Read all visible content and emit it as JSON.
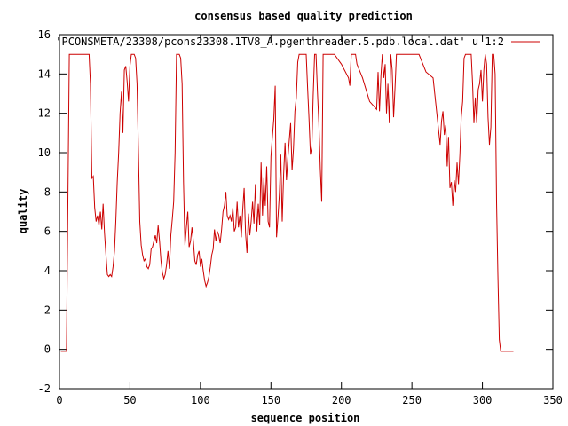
{
  "chart_data": {
    "type": "line",
    "title": "consensus based quality prediction",
    "xlabel": "sequence position",
    "ylabel": "quality",
    "xlim": [
      0,
      350
    ],
    "ylim": [
      -2,
      16
    ],
    "xticks": [
      0,
      50,
      100,
      150,
      200,
      250,
      300,
      350
    ],
    "xtick_labels": [
      "0",
      "50",
      "100",
      "150",
      "200",
      "250",
      "300",
      "350"
    ],
    "yticks": [
      -2,
      0,
      2,
      4,
      6,
      8,
      10,
      12,
      14,
      16
    ],
    "ytick_labels": [
      "-2",
      "0",
      "2",
      "4",
      "6",
      "8",
      "10",
      "12",
      "14",
      "16"
    ],
    "grid": false,
    "legend_position": "top-right",
    "series": [
      {
        "name": "'PCONSMETA/23308/pcons23308.1TV8_A.pgenthreader.5.pdb.local.dat' u 1:2",
        "color": "#cc0000",
        "x": [
          1,
          5,
          6,
          7,
          8,
          10,
          14,
          18,
          21,
          22,
          23,
          24,
          25,
          26,
          27,
          28,
          29,
          30,
          31,
          32,
          33,
          34,
          35,
          36,
          37,
          38,
          39,
          40,
          41,
          42,
          43,
          44,
          45,
          46,
          47,
          48,
          49,
          50,
          51,
          52,
          53,
          54,
          55,
          56,
          57,
          58,
          59,
          60,
          61,
          62,
          63,
          64,
          65,
          66,
          67,
          68,
          69,
          70,
          71,
          72,
          73,
          74,
          75,
          76,
          77,
          78,
          79,
          80,
          81,
          82,
          83,
          84,
          85,
          86,
          87,
          88,
          89,
          90,
          91,
          92,
          93,
          94,
          95,
          96,
          97,
          98,
          99,
          100,
          101,
          102,
          103,
          104,
          105,
          106,
          107,
          108,
          109,
          110,
          111,
          112,
          113,
          114,
          115,
          116,
          117,
          118,
          119,
          120,
          121,
          122,
          123,
          124,
          125,
          126,
          127,
          128,
          129,
          130,
          131,
          132,
          133,
          134,
          135,
          136,
          137,
          138,
          139,
          140,
          141,
          142,
          143,
          144,
          145,
          146,
          147,
          148,
          149,
          150,
          151,
          152,
          153,
          154,
          155,
          156,
          157,
          158,
          159,
          160,
          161,
          162,
          163,
          164,
          165,
          166,
          167,
          168,
          169,
          170,
          171,
          172,
          173,
          174,
          175,
          176,
          177,
          178,
          179,
          180,
          181,
          182,
          183,
          184,
          185,
          186,
          187,
          188,
          189,
          190,
          195,
          200,
          205,
          206,
          207,
          208,
          209,
          210,
          211,
          215,
          220,
          225,
          226,
          227,
          228,
          229,
          230,
          231,
          232,
          233,
          234,
          235,
          236,
          237,
          238,
          239,
          240,
          241,
          242,
          245,
          250,
          255,
          260,
          265,
          270,
          271,
          272,
          273,
          274,
          275,
          276,
          277,
          278,
          279,
          280,
          281,
          282,
          283,
          284,
          285,
          286,
          287,
          288,
          289,
          290,
          291,
          292,
          293,
          294,
          295,
          296,
          297,
          298,
          299,
          300,
          301,
          302,
          303,
          304,
          305,
          306,
          307,
          308,
          309,
          310,
          311,
          312,
          313,
          320,
          322
        ],
        "y": [
          -0.1,
          -0.1,
          7.5,
          15,
          15,
          15,
          15,
          15,
          15,
          13.5,
          8.7,
          8.8,
          7.2,
          6.5,
          6.8,
          6.3,
          7,
          6.1,
          7.4,
          5.9,
          4.8,
          3.8,
          3.7,
          3.8,
          3.7,
          4.2,
          5,
          6.5,
          8.5,
          10,
          12,
          13.1,
          11,
          14.2,
          14.4,
          13.6,
          12.6,
          14.4,
          15,
          15,
          15,
          14.8,
          13.5,
          10,
          6.5,
          5.3,
          4.8,
          4.5,
          4.6,
          4.2,
          4.1,
          4.3,
          5.1,
          5.2,
          5.5,
          5.8,
          5.4,
          6.3,
          5.5,
          4.5,
          3.9,
          3.6,
          3.8,
          4.3,
          5,
          4.1,
          5.8,
          6.6,
          7.5,
          10,
          15,
          15,
          15,
          14.8,
          13.5,
          8.5,
          5.3,
          6.2,
          7,
          5.2,
          5.5,
          6.2,
          5.5,
          4.5,
          4.3,
          4.8,
          5,
          4.2,
          4.6,
          4,
          3.5,
          3.2,
          3.4,
          3.7,
          4.2,
          4.8,
          5.1,
          6.1,
          5.5,
          6,
          5.8,
          5.4,
          6.1,
          7,
          7.3,
          8,
          6.8,
          6.6,
          6.8,
          6.5,
          7.2,
          6,
          6.2,
          7.5,
          6.2,
          6.8,
          5.7,
          7.1,
          8.2,
          5.9,
          4.9,
          6.9,
          5.8,
          6.5,
          7.5,
          6.4,
          8.4,
          6,
          7.4,
          6.3,
          9.5,
          6.8,
          8.7,
          7.3,
          9.3,
          6.5,
          6.2,
          9.8,
          10.8,
          11.7,
          13.4,
          5.7,
          6.7,
          7.9,
          9.9,
          6.5,
          8.9,
          10.5,
          8.6,
          9.7,
          10.6,
          11.5,
          9.1,
          10.2,
          12.1,
          12.8,
          14.6,
          15,
          15,
          15,
          15,
          15,
          15,
          13.3,
          11.7,
          9.9,
          10.3,
          12.9,
          15,
          15,
          13.1,
          11.5,
          9.2,
          7.5,
          15,
          15,
          15,
          15,
          15,
          14.5,
          13.8,
          13.4,
          15,
          15,
          15,
          15,
          14.5,
          13.8,
          12.6,
          12.2,
          14.1,
          12.1,
          13.9,
          15,
          13.8,
          14.5,
          12,
          13.5,
          11.5,
          15,
          14.2,
          11.8,
          13.3,
          15,
          15,
          15,
          15,
          15,
          15,
          15,
          14.1,
          13.8,
          10.4,
          11.6,
          12.1,
          10.9,
          11.4,
          9.3,
          10.8,
          8.2,
          8.5,
          7.3,
          8.6,
          8,
          9.5,
          8.4,
          9.9,
          11.8,
          12.6,
          14.8,
          15,
          15,
          15,
          15,
          15,
          13.5,
          11.5,
          12.8,
          11.5,
          13.2,
          13.5,
          14.2,
          12.6,
          14.2,
          15,
          14.5,
          11.8,
          10.4,
          11.3,
          15,
          15,
          14,
          7.5,
          3.8,
          0.5,
          -0.1,
          -0.1,
          -0.1
        ]
      }
    ]
  }
}
